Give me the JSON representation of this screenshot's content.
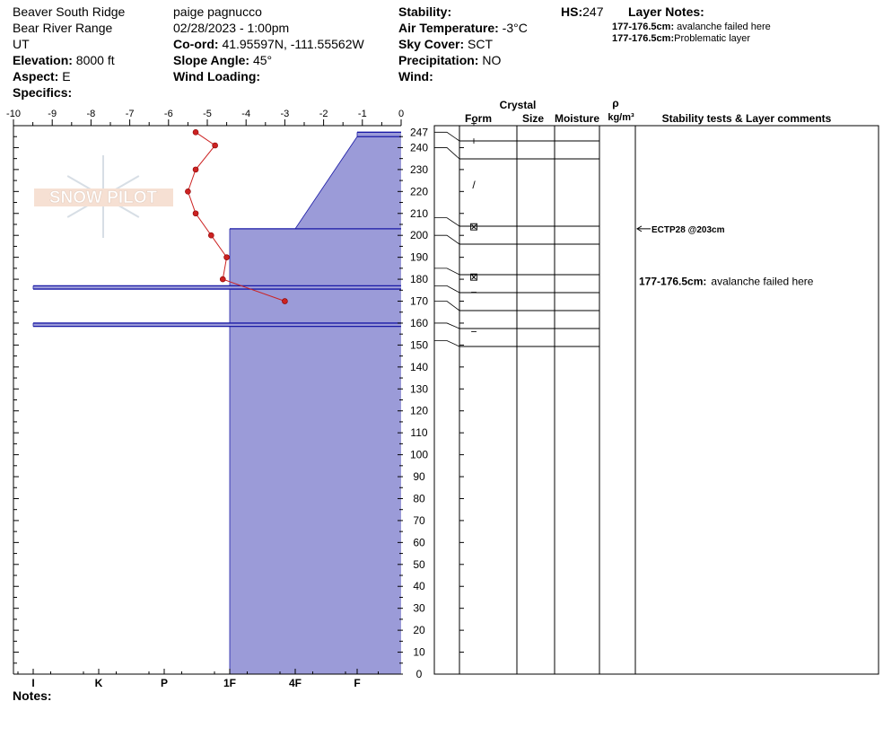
{
  "header": {
    "location": "Beaver South  Ridge",
    "range": "Bear River Range",
    "state": "UT",
    "elevation_label": "Elevation:",
    "elevation": "8000 ft",
    "aspect_label": "Aspect:",
    "aspect": "E",
    "specifics_label": "Specifics:",
    "observer": "paige pagnucco",
    "datetime": "02/28/2023 - 1:00pm",
    "coord_label": "Co-ord:",
    "coord": "41.95597N, -111.55562W",
    "slope_label": "Slope Angle:",
    "slope": "45°",
    "wind_loading_label": "Wind Loading:",
    "stability_label": "Stability:",
    "air_temp_label": "Air Temperature:",
    "air_temp": "-3°C",
    "sky_label": "Sky Cover:",
    "sky": "SCT",
    "precip_label": "Precipitation:",
    "precip": "NO",
    "wind_label": "Wind:",
    "hs_label": "HS:",
    "hs": "247",
    "layer_notes_label": "Layer Notes:",
    "layer_notes": [
      {
        "range": "177-176.5cm:",
        "text": "avalanche failed here"
      },
      {
        "range": "177-176.5cm:",
        "text": "Problematic layer"
      }
    ]
  },
  "logo": {
    "text": "SNOW PILOT"
  },
  "notes_label": "Notes:",
  "table_headers": {
    "crystal": "Crystal",
    "form": "Form",
    "size": "Size",
    "moisture": "Moisture",
    "rho": "ρ",
    "density_unit": "kg/m³",
    "comments": "Stability tests & Layer comments"
  },
  "colors": {
    "layer_fill": "#9b9bd8",
    "layer_edge": "#1a1aa6",
    "temp_line": "#cc2222"
  },
  "chart_data": {
    "type": "snow-profile",
    "temperature_axis": {
      "min": -10,
      "max": 0,
      "ticks": [
        "-10",
        "-9",
        "-8",
        "-7",
        "-6",
        "-5",
        "-4",
        "-3",
        "-2",
        "-1",
        "0"
      ]
    },
    "height_axis": {
      "min": 0,
      "max": 250,
      "ticks": [
        "0",
        "10",
        "20",
        "30",
        "40",
        "50",
        "60",
        "70",
        "80",
        "90",
        "100",
        "110",
        "120",
        "130",
        "140",
        "150",
        "160",
        "170",
        "180",
        "190",
        "200",
        "210",
        "220",
        "230",
        "240",
        "247"
      ]
    },
    "hardness_axis": {
      "labels": [
        "I",
        "K",
        "P",
        "1F",
        "4F",
        "F"
      ],
      "index_values": [
        0,
        1,
        2,
        3,
        4,
        5
      ]
    },
    "hardness_profile": [
      {
        "top": 247,
        "bottom": 245,
        "hardness_index": 5.0
      },
      {
        "top": 245,
        "bottom": 203,
        "hardness_index_top": 5.0,
        "hardness_index_bottom": 4.0
      },
      {
        "top": 203,
        "bottom": 177,
        "hardness_index": 3.0
      },
      {
        "top": 177,
        "bottom": 175.5,
        "hardness_index": 0.0
      },
      {
        "top": 175.5,
        "bottom": 160,
        "hardness_index": 3.0
      },
      {
        "top": 160,
        "bottom": 158.5,
        "hardness_index": 0.0
      },
      {
        "top": 158.5,
        "bottom": 0,
        "hardness_index": 3.0
      }
    ],
    "temperature_profile": [
      {
        "height": 247,
        "temp": -5.3
      },
      {
        "height": 241,
        "temp": -4.8
      },
      {
        "height": 230,
        "temp": -5.3
      },
      {
        "height": 220,
        "temp": -5.5
      },
      {
        "height": 210,
        "temp": -5.3
      },
      {
        "height": 200,
        "temp": -4.9
      },
      {
        "height": 190,
        "temp": -4.5
      },
      {
        "height": 180,
        "temp": -4.6
      },
      {
        "height": 170,
        "temp": -3.0
      }
    ],
    "layer_boundaries": [
      247,
      240,
      208,
      200,
      185,
      177,
      170,
      160,
      152
    ],
    "layer_symbols": [
      {
        "symbol": "+",
        "y": 251
      },
      {
        "symbol": "+",
        "y": 243
      },
      {
        "symbol": "/",
        "y": 223
      },
      {
        "symbol": "⊠",
        "y": 204
      },
      {
        "symbol": "⊠",
        "y": 181
      },
      {
        "symbol": "−",
        "y": 174
      },
      {
        "symbol": "−",
        "y": 156
      }
    ],
    "comments": [
      {
        "height": 203,
        "text": "ECTP28 @203cm",
        "arrow": true
      },
      {
        "height": 179,
        "range": "177-176.5cm:",
        "text": "avalanche failed here",
        "arrow": false
      }
    ]
  }
}
